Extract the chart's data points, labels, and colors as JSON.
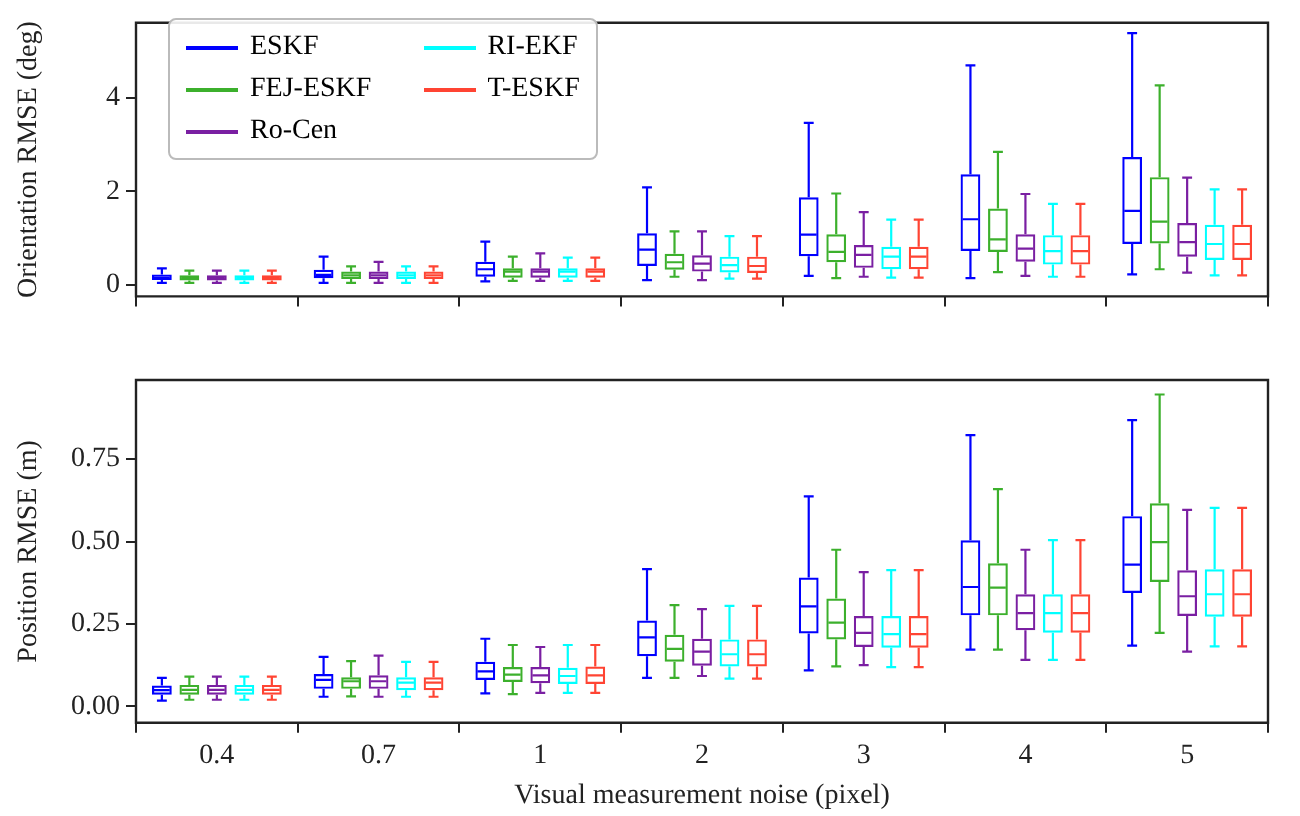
{
  "chart_data": [
    {
      "type": "box",
      "ylabel": "Orientation RMSE (deg)",
      "categories": [
        "0.4",
        "0.7",
        "1",
        "2",
        "3",
        "4",
        "5"
      ],
      "ylim": [
        -0.25,
        5.6
      ],
      "yticks": [
        0,
        2,
        4
      ],
      "tick_labels": "y",
      "legend": "top left",
      "series": [
        {
          "name": "ESKF",
          "color": "#0000ff",
          "boxes": [
            {
              "low": 0.04,
              "q1": 0.1,
              "median": 0.15,
              "q3": 0.22,
              "high": 0.35
            },
            {
              "low": 0.04,
              "q1": 0.14,
              "median": 0.21,
              "q3": 0.32,
              "high": 0.6
            },
            {
              "low": 0.07,
              "q1": 0.17,
              "median": 0.33,
              "q3": 0.49,
              "high": 0.92
            },
            {
              "low": 0.1,
              "q1": 0.4,
              "median": 0.75,
              "q3": 1.1,
              "high": 2.08
            },
            {
              "low": 0.19,
              "q1": 0.61,
              "median": 1.07,
              "q3": 1.87,
              "high": 3.46
            },
            {
              "low": 0.14,
              "q1": 0.72,
              "median": 1.4,
              "q3": 2.36,
              "high": 4.69
            },
            {
              "low": 0.22,
              "q1": 0.87,
              "median": 1.58,
              "q3": 2.73,
              "high": 5.38
            }
          ]
        },
        {
          "name": "FEJ-ESKF",
          "color": "#3cb02c",
          "boxes": [
            {
              "low": 0.04,
              "q1": 0.09,
              "median": 0.14,
              "q3": 0.2,
              "high": 0.3
            },
            {
              "low": 0.04,
              "q1": 0.12,
              "median": 0.2,
              "q3": 0.28,
              "high": 0.39
            },
            {
              "low": 0.08,
              "q1": 0.15,
              "median": 0.28,
              "q3": 0.35,
              "high": 0.6
            },
            {
              "low": 0.17,
              "q1": 0.32,
              "median": 0.48,
              "q3": 0.66,
              "high": 1.14
            },
            {
              "low": 0.14,
              "q1": 0.48,
              "median": 0.7,
              "q3": 1.08,
              "high": 1.95
            },
            {
              "low": 0.27,
              "q1": 0.7,
              "median": 0.97,
              "q3": 1.63,
              "high": 2.84
            },
            {
              "low": 0.33,
              "q1": 0.88,
              "median": 1.35,
              "q3": 2.3,
              "high": 4.26
            }
          ]
        },
        {
          "name": "Ro-Cen",
          "color": "#7a1fa2",
          "boxes": [
            {
              "low": 0.04,
              "q1": 0.09,
              "median": 0.14,
              "q3": 0.2,
              "high": 0.3
            },
            {
              "low": 0.04,
              "q1": 0.12,
              "median": 0.2,
              "q3": 0.28,
              "high": 0.49
            },
            {
              "low": 0.08,
              "q1": 0.15,
              "median": 0.28,
              "q3": 0.35,
              "high": 0.67
            },
            {
              "low": 0.1,
              "q1": 0.28,
              "median": 0.45,
              "q3": 0.63,
              "high": 1.14
            },
            {
              "low": 0.17,
              "q1": 0.36,
              "median": 0.64,
              "q3": 0.85,
              "high": 1.55
            },
            {
              "low": 0.19,
              "q1": 0.49,
              "median": 0.77,
              "q3": 1.08,
              "high": 1.94
            },
            {
              "low": 0.26,
              "q1": 0.6,
              "median": 0.91,
              "q3": 1.32,
              "high": 2.29
            }
          ]
        },
        {
          "name": "RI-EKF",
          "color": "#00ffff",
          "boxes": [
            {
              "low": 0.04,
              "q1": 0.09,
              "median": 0.14,
              "q3": 0.2,
              "high": 0.3
            },
            {
              "low": 0.04,
              "q1": 0.12,
              "median": 0.2,
              "q3": 0.28,
              "high": 0.39
            },
            {
              "low": 0.08,
              "q1": 0.15,
              "median": 0.28,
              "q3": 0.35,
              "high": 0.58
            },
            {
              "low": 0.13,
              "q1": 0.26,
              "median": 0.42,
              "q3": 0.6,
              "high": 1.04
            },
            {
              "low": 0.15,
              "q1": 0.33,
              "median": 0.6,
              "q3": 0.81,
              "high": 1.39
            },
            {
              "low": 0.17,
              "q1": 0.43,
              "median": 0.72,
              "q3": 1.06,
              "high": 1.73
            },
            {
              "low": 0.2,
              "q1": 0.53,
              "median": 0.87,
              "q3": 1.28,
              "high": 2.04
            }
          ]
        },
        {
          "name": "T-ESKF",
          "color": "#ff4433",
          "boxes": [
            {
              "low": 0.04,
              "q1": 0.09,
              "median": 0.14,
              "q3": 0.2,
              "high": 0.3
            },
            {
              "low": 0.04,
              "q1": 0.12,
              "median": 0.2,
              "q3": 0.28,
              "high": 0.39
            },
            {
              "low": 0.08,
              "q1": 0.15,
              "median": 0.28,
              "q3": 0.35,
              "high": 0.58
            },
            {
              "low": 0.13,
              "q1": 0.25,
              "median": 0.4,
              "q3": 0.6,
              "high": 1.04
            },
            {
              "low": 0.15,
              "q1": 0.33,
              "median": 0.6,
              "q3": 0.81,
              "high": 1.39
            },
            {
              "low": 0.17,
              "q1": 0.43,
              "median": 0.72,
              "q3": 1.06,
              "high": 1.73
            },
            {
              "low": 0.2,
              "q1": 0.53,
              "median": 0.87,
              "q3": 1.28,
              "high": 2.04
            }
          ]
        }
      ]
    },
    {
      "type": "box",
      "ylabel": "Position RMSE (m)",
      "xlabel": "Visual measurement noise (pixel)",
      "categories": [
        "0.4",
        "0.7",
        "1",
        "2",
        "3",
        "4",
        "5"
      ],
      "ylim": [
        -0.05,
        0.99
      ],
      "yticks": [
        {
          "value": 0,
          "label": "0.00"
        },
        {
          "value": 0.25,
          "label": "0.25"
        },
        {
          "value": 0.5,
          "label": "0.50"
        },
        {
          "value": 0.75,
          "label": "0.75"
        }
      ],
      "series": [
        {
          "color": "#0000ff",
          "boxes": [
            {
              "low": 0.017,
              "q1": 0.035,
              "median": 0.049,
              "q3": 0.063,
              "high": 0.086
            },
            {
              "low": 0.029,
              "q1": 0.053,
              "median": 0.08,
              "q3": 0.098,
              "high": 0.15
            },
            {
              "low": 0.039,
              "q1": 0.08,
              "median": 0.106,
              "q3": 0.135,
              "high": 0.205
            },
            {
              "low": 0.086,
              "q1": 0.152,
              "median": 0.209,
              "q3": 0.26,
              "high": 0.416
            },
            {
              "low": 0.109,
              "q1": 0.221,
              "median": 0.303,
              "q3": 0.391,
              "high": 0.637
            },
            {
              "low": 0.172,
              "q1": 0.276,
              "median": 0.362,
              "q3": 0.504,
              "high": 0.823
            },
            {
              "low": 0.184,
              "q1": 0.344,
              "median": 0.43,
              "q3": 0.577,
              "high": 0.868
            }
          ]
        },
        {
          "color": "#3cb02c",
          "boxes": [
            {
              "low": 0.02,
              "q1": 0.035,
              "median": 0.05,
              "q3": 0.065,
              "high": 0.09
            },
            {
              "low": 0.03,
              "q1": 0.053,
              "median": 0.076,
              "q3": 0.088,
              "high": 0.137
            },
            {
              "low": 0.037,
              "q1": 0.074,
              "median": 0.096,
              "q3": 0.119,
              "high": 0.186
            },
            {
              "low": 0.086,
              "q1": 0.135,
              "median": 0.174,
              "q3": 0.217,
              "high": 0.307
            },
            {
              "low": 0.121,
              "q1": 0.203,
              "median": 0.254,
              "q3": 0.327,
              "high": 0.475
            },
            {
              "low": 0.172,
              "q1": 0.276,
              "median": 0.36,
              "q3": 0.434,
              "high": 0.659
            },
            {
              "low": 0.223,
              "q1": 0.377,
              "median": 0.498,
              "q3": 0.616,
              "high": 0.946
            }
          ]
        },
        {
          "color": "#7a1fa2",
          "boxes": [
            {
              "low": 0.02,
              "q1": 0.035,
              "median": 0.05,
              "q3": 0.065,
              "high": 0.09
            },
            {
              "low": 0.029,
              "q1": 0.053,
              "median": 0.076,
              "q3": 0.094,
              "high": 0.154
            },
            {
              "low": 0.041,
              "q1": 0.07,
              "median": 0.094,
              "q3": 0.119,
              "high": 0.18
            },
            {
              "low": 0.092,
              "q1": 0.123,
              "median": 0.166,
              "q3": 0.205,
              "high": 0.295
            },
            {
              "low": 0.125,
              "q1": 0.18,
              "median": 0.223,
              "q3": 0.274,
              "high": 0.407
            },
            {
              "low": 0.141,
              "q1": 0.231,
              "median": 0.283,
              "q3": 0.34,
              "high": 0.475
            },
            {
              "low": 0.166,
              "q1": 0.274,
              "median": 0.334,
              "q3": 0.413,
              "high": 0.596
            }
          ]
        },
        {
          "color": "#00ffff",
          "boxes": [
            {
              "low": 0.02,
              "q1": 0.035,
              "median": 0.05,
              "q3": 0.065,
              "high": 0.09
            },
            {
              "low": 0.029,
              "q1": 0.049,
              "median": 0.072,
              "q3": 0.088,
              "high": 0.135
            },
            {
              "low": 0.041,
              "q1": 0.068,
              "median": 0.092,
              "q3": 0.117,
              "high": 0.186
            },
            {
              "low": 0.084,
              "q1": 0.121,
              "median": 0.158,
              "q3": 0.203,
              "high": 0.305
            },
            {
              "low": 0.119,
              "q1": 0.178,
              "median": 0.219,
              "q3": 0.274,
              "high": 0.413
            },
            {
              "low": 0.141,
              "q1": 0.223,
              "median": 0.283,
              "q3": 0.34,
              "high": 0.504
            },
            {
              "low": 0.182,
              "q1": 0.272,
              "median": 0.34,
              "q3": 0.416,
              "high": 0.602
            }
          ]
        },
        {
          "color": "#ff4433",
          "boxes": [
            {
              "low": 0.02,
              "q1": 0.035,
              "median": 0.05,
              "q3": 0.065,
              "high": 0.09
            },
            {
              "low": 0.029,
              "q1": 0.049,
              "median": 0.072,
              "q3": 0.088,
              "high": 0.135
            },
            {
              "low": 0.041,
              "q1": 0.068,
              "median": 0.094,
              "q3": 0.121,
              "high": 0.186
            },
            {
              "low": 0.084,
              "q1": 0.121,
              "median": 0.158,
              "q3": 0.203,
              "high": 0.305
            },
            {
              "low": 0.119,
              "q1": 0.178,
              "median": 0.219,
              "q3": 0.274,
              "high": 0.413
            },
            {
              "low": 0.141,
              "q1": 0.223,
              "median": 0.283,
              "q3": 0.34,
              "high": 0.504
            },
            {
              "low": 0.182,
              "q1": 0.272,
              "median": 0.34,
              "q3": 0.416,
              "high": 0.602
            }
          ]
        }
      ]
    }
  ]
}
